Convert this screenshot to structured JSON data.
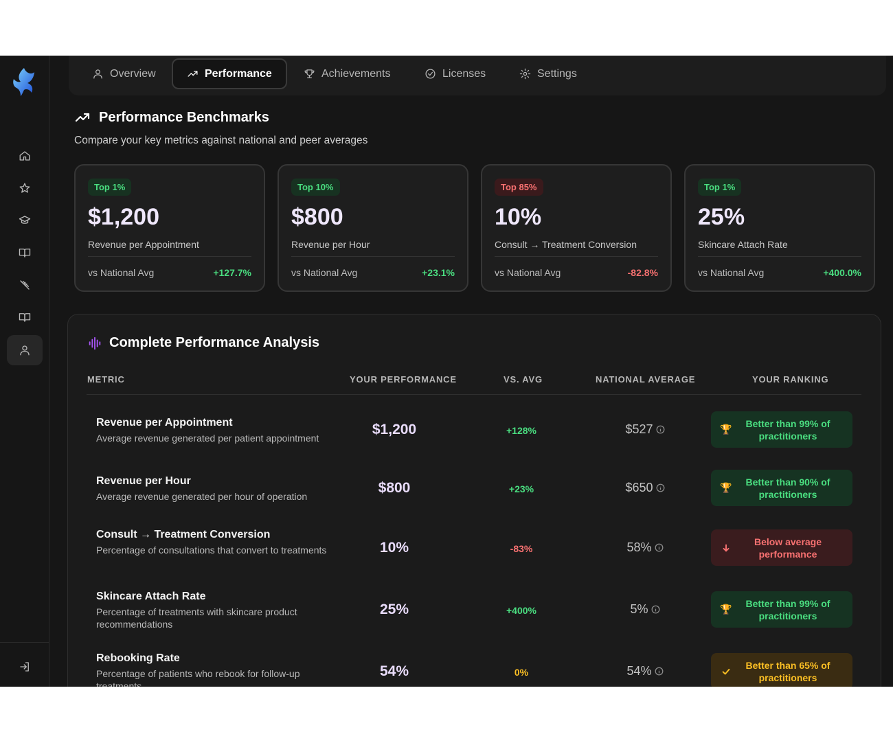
{
  "tabs": [
    {
      "label": "Overview",
      "icon": "user-icon"
    },
    {
      "label": "Performance",
      "icon": "trending-up-icon",
      "active": true
    },
    {
      "label": "Achievements",
      "icon": "trophy-icon"
    },
    {
      "label": "Licenses",
      "icon": "check-circle-icon"
    },
    {
      "label": "Settings",
      "icon": "gear-icon"
    }
  ],
  "sidebar": {
    "items": [
      {
        "name": "home-icon"
      },
      {
        "name": "star-icon"
      },
      {
        "name": "graduation-cap-icon"
      },
      {
        "name": "book-open-icon"
      },
      {
        "name": "syringe-icon"
      },
      {
        "name": "book-icon"
      },
      {
        "name": "user-icon",
        "active": true
      }
    ],
    "logout": "logout-icon"
  },
  "benchmarks": {
    "title": "Performance Benchmarks",
    "subtitle": "Compare your key metrics against national and peer averages",
    "cards": [
      {
        "badge": "Top 1%",
        "value": "$1,200",
        "label": "Revenue per Appointment",
        "compare": "vs National Avg",
        "pct": "+127.7%"
      },
      {
        "badge": "Top 10%",
        "value": "$800",
        "label": "Revenue per Hour",
        "compare": "vs National Avg",
        "pct": "+23.1%"
      },
      {
        "badge": "Top 85%",
        "value": "10%",
        "label": "Consult → Treatment Conversion",
        "compare": "vs National Avg",
        "pct": "-82.8%"
      },
      {
        "badge": "Top 1%",
        "value": "25%",
        "label": "Skincare Attach Rate",
        "compare": "vs National Avg",
        "pct": "+400.0%"
      }
    ]
  },
  "analysis": {
    "title": "Complete Performance Analysis",
    "headers": {
      "metric": "Metric",
      "performance": "Your Performance",
      "vs": "vs. Avg",
      "national": "National Average",
      "ranking": "Your Ranking"
    },
    "rows": [
      {
        "name": "Revenue per Appointment",
        "desc": "Average revenue generated per patient appointment",
        "perf": "$1,200",
        "vs": "+128%",
        "national": "$527",
        "ranking": "Better than 99% of practitioners"
      },
      {
        "name": "Revenue per Hour",
        "desc": "Average revenue generated per hour of operation",
        "perf": "$800",
        "vs": "+23%",
        "national": "$650",
        "ranking": "Better than 90% of practitioners"
      },
      {
        "name": "Consult → Treatment Conversion",
        "desc": "Percentage of consultations that convert to treatments",
        "perf": "10%",
        "vs": "-83%",
        "national": "58%",
        "ranking": "Below average performance"
      },
      {
        "name": "Skincare Attach Rate",
        "desc": "Percentage of treatments with skincare product recommendations",
        "perf": "25%",
        "vs": "+400%",
        "national": "5%",
        "ranking": "Better than 99% of practitioners"
      },
      {
        "name": "Rebooking Rate",
        "desc": "Percentage of patients who rebook for follow-up treatments",
        "perf": "54%",
        "vs": "0%",
        "national": "54%",
        "ranking": "Better than 65% of practitioners"
      }
    ]
  },
  "colors": {
    "positive": "#4ade80",
    "negative": "#f87171",
    "neutral": "#fbbf24",
    "accent": "#a855f7"
  }
}
